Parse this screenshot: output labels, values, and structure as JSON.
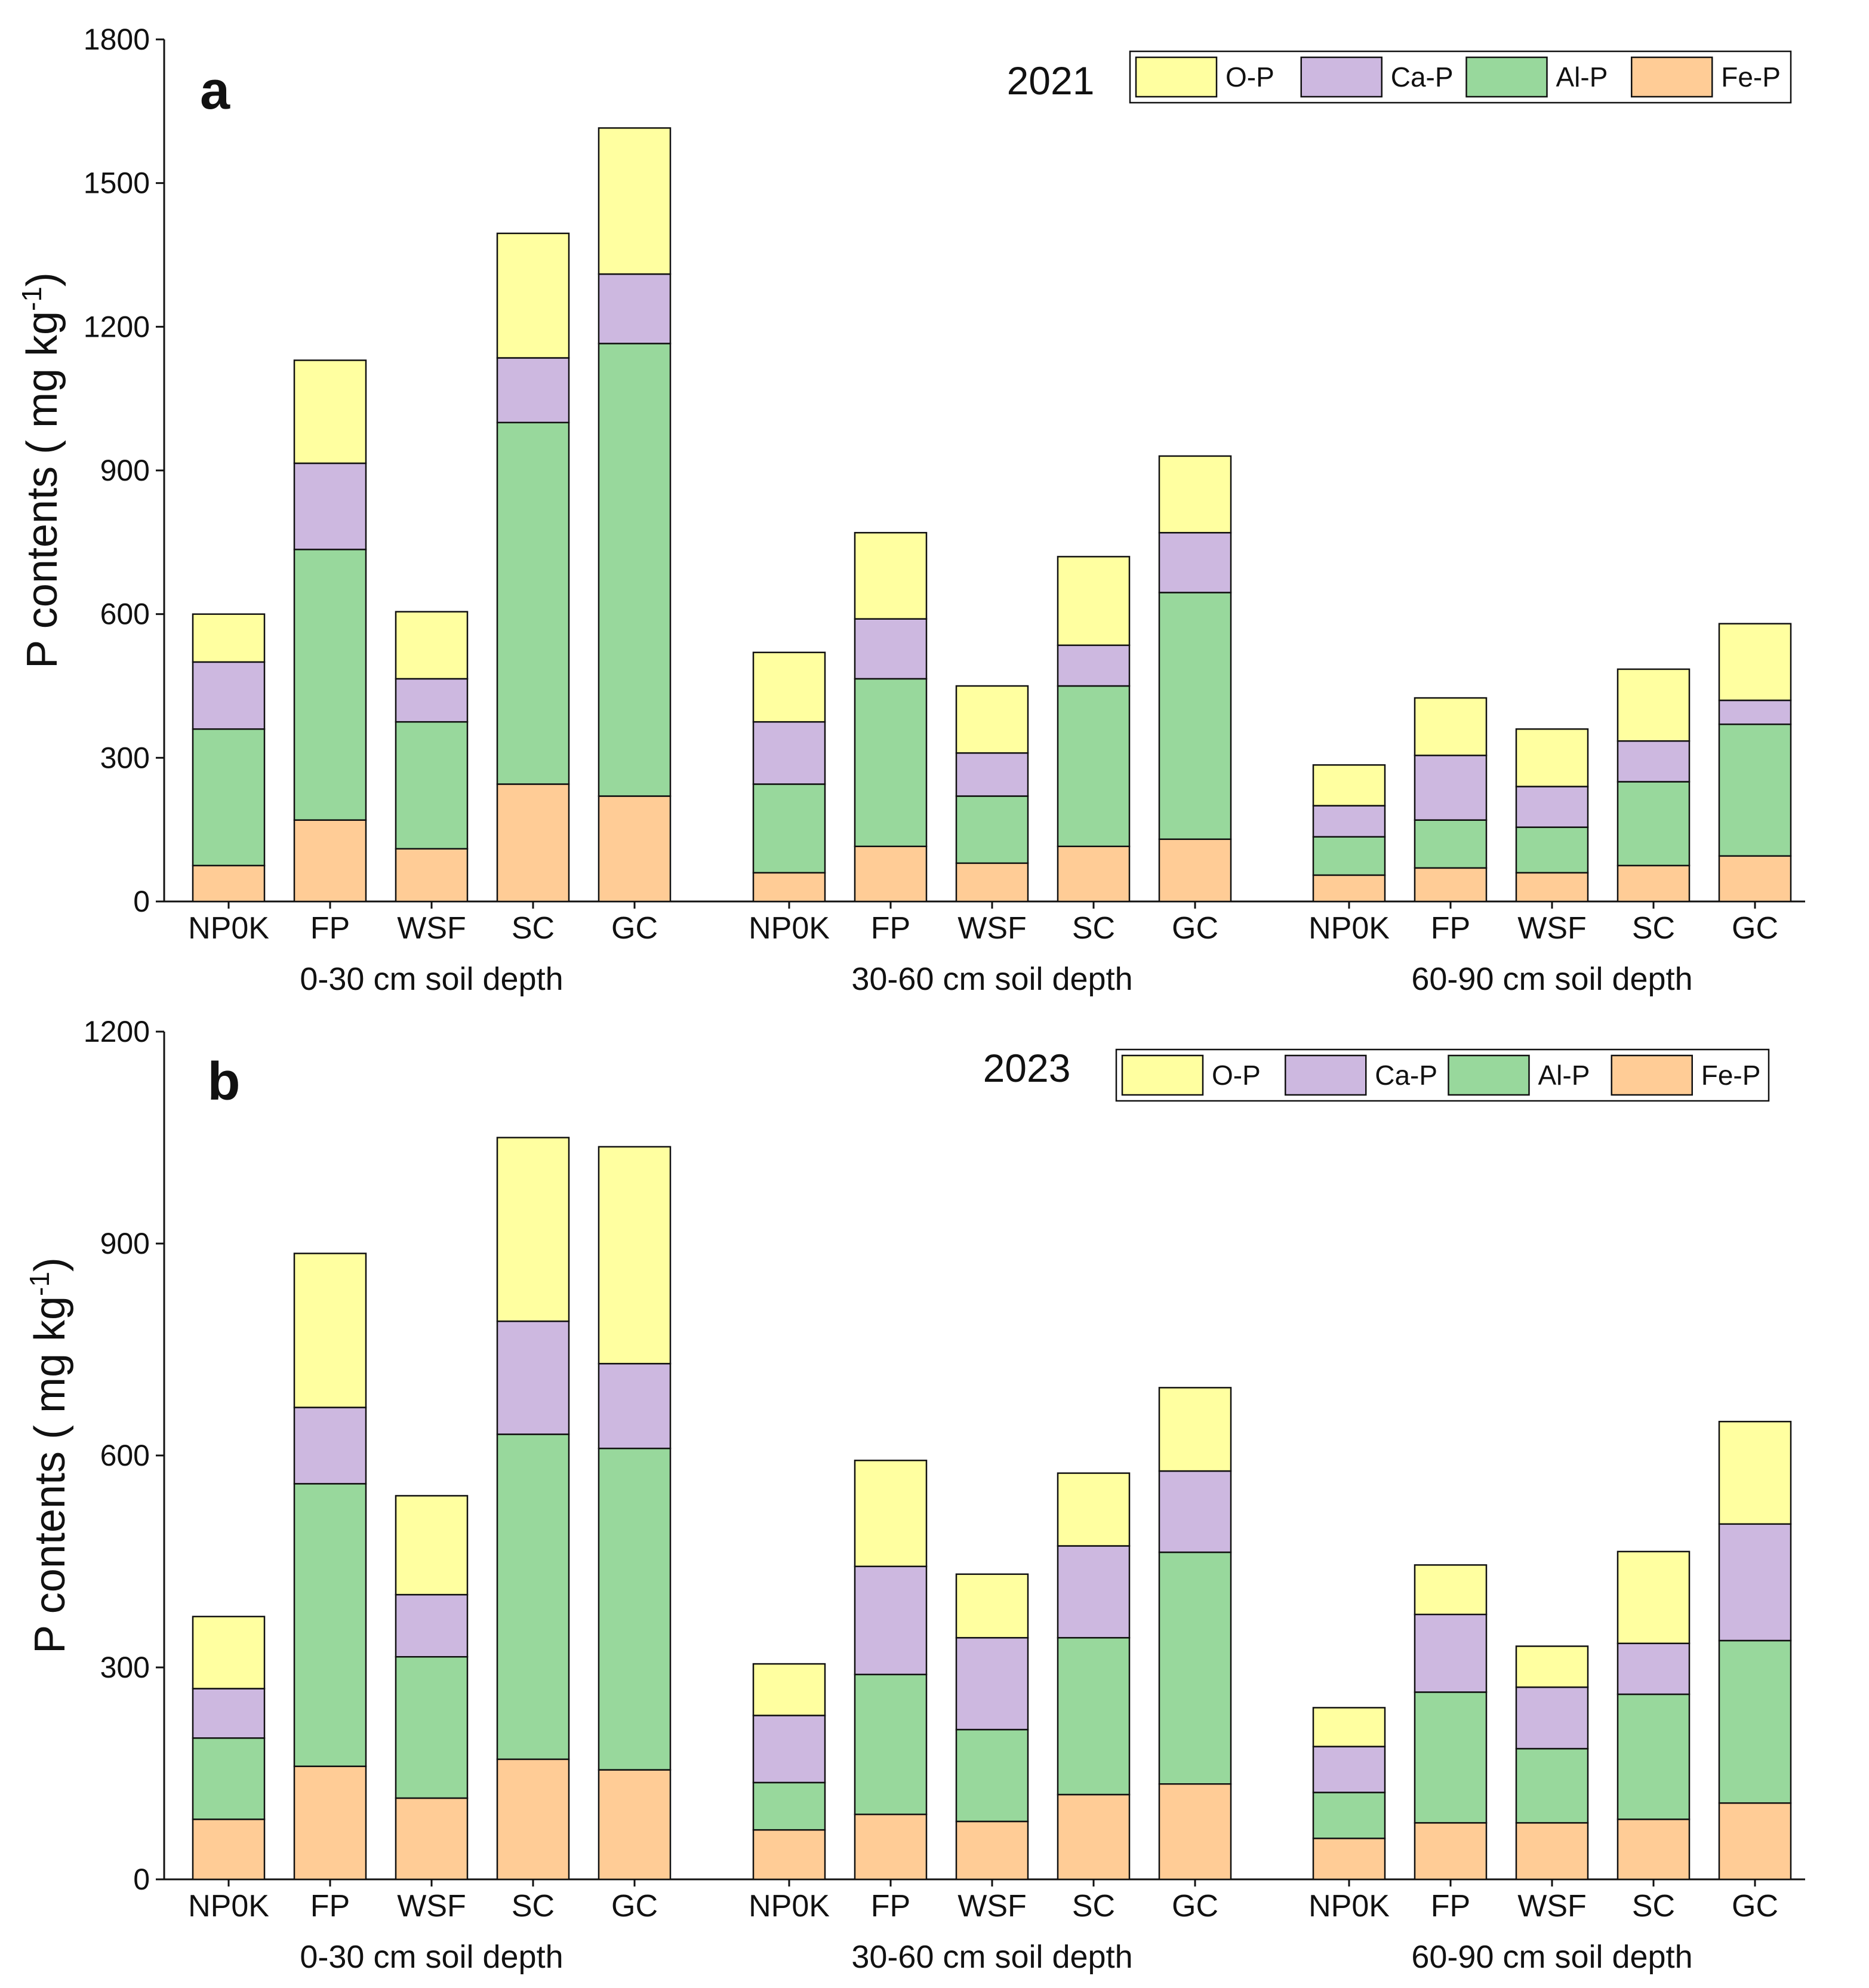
{
  "series_colors": {
    "O-P": "#ffffa0",
    "Ca-P": "#cdb8e0",
    "Al-P": "#98d89c",
    "Fe-P": "#ffcc96"
  },
  "chart_data": [
    {
      "type": "bar",
      "stacked": true,
      "panel_letter": "a",
      "year": "2021",
      "ylabel": "P contents ( mg kg-1)",
      "ylabel_main": "P contents ( mg kg",
      "ylabel_sup": "-1",
      "ylabel_close": ")",
      "ylim": [
        0,
        1800
      ],
      "yticks": [
        "0",
        "300",
        "600",
        "900",
        "1200",
        "1500",
        "1800"
      ],
      "legend": [
        "O-P",
        "Ca-P",
        "Al-P",
        "Fe-P"
      ],
      "legend_position": "top-right",
      "groups": [
        {
          "label": "0-30 cm soil depth",
          "categories": [
            "NP0K",
            "FP",
            "WSF",
            "SC",
            "GC"
          ]
        },
        {
          "label": "30-60 cm soil depth",
          "categories": [
            "NP0K",
            "FP",
            "WSF",
            "SC",
            "GC"
          ]
        },
        {
          "label": "60-90 cm soil depth",
          "categories": [
            "NP0K",
            "FP",
            "WSF",
            "SC",
            "GC"
          ]
        }
      ],
      "series": [
        {
          "name": "Fe-P",
          "values": [
            75,
            170,
            110,
            245,
            220,
            60,
            115,
            80,
            115,
            130,
            55,
            70,
            60,
            75,
            95
          ]
        },
        {
          "name": "Al-P",
          "values": [
            285,
            565,
            265,
            755,
            945,
            185,
            350,
            140,
            335,
            515,
            80,
            100,
            95,
            175,
            275
          ]
        },
        {
          "name": "Ca-P",
          "values": [
            140,
            180,
            90,
            135,
            145,
            130,
            125,
            90,
            85,
            125,
            65,
            135,
            85,
            85,
            50
          ]
        },
        {
          "name": "O-P",
          "values": [
            100,
            215,
            140,
            260,
            305,
            145,
            180,
            140,
            185,
            160,
            85,
            120,
            120,
            150,
            160
          ]
        }
      ]
    },
    {
      "type": "bar",
      "stacked": true,
      "panel_letter": "b",
      "year": "2023",
      "ylabel": "P contents ( mg kg-1)",
      "ylabel_main": "P contents ( mg kg",
      "ylabel_sup": "-1",
      "ylabel_close": ")",
      "ylim": [
        0,
        1200
      ],
      "yticks": [
        "0",
        "300",
        "600",
        "900",
        "1200"
      ],
      "legend": [
        "O-P",
        "Ca-P",
        "Al-P",
        "Fe-P"
      ],
      "legend_position": "top-right",
      "groups": [
        {
          "label": "0-30 cm soil depth",
          "categories": [
            "NP0K",
            "FP",
            "WSF",
            "SC",
            "GC"
          ]
        },
        {
          "label": "30-60 cm soil depth",
          "categories": [
            "NP0K",
            "FP",
            "WSF",
            "SC",
            "GC"
          ]
        },
        {
          "label": "60-90 cm soil depth",
          "categories": [
            "NP0K",
            "FP",
            "WSF",
            "SC",
            "GC"
          ]
        }
      ],
      "series": [
        {
          "name": "Fe-P",
          "values": [
            85,
            160,
            115,
            170,
            155,
            70,
            92,
            82,
            120,
            135,
            58,
            80,
            80,
            85,
            108
          ]
        },
        {
          "name": "Al-P",
          "values": [
            115,
            400,
            200,
            460,
            455,
            67,
            198,
            130,
            222,
            328,
            65,
            185,
            105,
            177,
            230
          ]
        },
        {
          "name": "Ca-P",
          "values": [
            70,
            108,
            88,
            160,
            120,
            95,
            153,
            130,
            130,
            115,
            65,
            110,
            87,
            72,
            165
          ]
        },
        {
          "name": "O-P",
          "values": [
            102,
            218,
            140,
            260,
            307,
            73,
            150,
            90,
            103,
            118,
            55,
            70,
            58,
            130,
            145
          ]
        }
      ]
    }
  ]
}
